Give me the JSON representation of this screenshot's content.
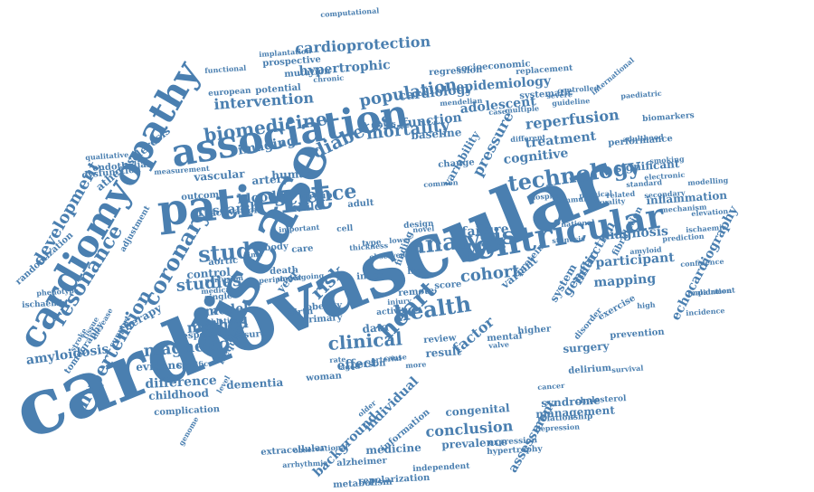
{
  "palette": {
    "word_color": "#4a7fb0",
    "background": "#ffffff"
  },
  "words": [
    "cardiovascular",
    "disease",
    "cardiomyopathy",
    "association",
    "patient",
    "ventricular",
    "coronary",
    "resonance",
    "analysis",
    "study",
    "heart",
    "health",
    "hypertension",
    "technology",
    "clinical",
    "science",
    "biomedicine",
    "mortality",
    "development",
    "magnetic",
    "cohort",
    "risk",
    "diabetes",
    "population",
    "studies",
    "method",
    "imaging",
    "function",
    "intervention",
    "cardioprotection",
    "hypertrophic",
    "epidemiology",
    "cardiology",
    "reperfusion",
    "adolescent",
    "treatment",
    "cognitive",
    "echocardiography",
    "infarction",
    "genetic",
    "factor",
    "pressure",
    "conclusion",
    "individual",
    "background",
    "assessment",
    "medicine",
    "management",
    "syndrome",
    "difference",
    "evidence",
    "childhood",
    "dementia",
    "research",
    "model",
    "vascular",
    "atherosclerosis",
    "amyloidosis",
    "therapy",
    "diagnosis",
    "participant",
    "mapping",
    "significant",
    "inflammation",
    "surgery",
    "delirium",
    "fibrillation",
    "exercise",
    "congenital",
    "prevalence",
    "extracellular",
    "failure",
    "outcome",
    "blood",
    "control",
    "aortic",
    "death",
    "human",
    "year",
    "data",
    "review",
    "result",
    "mental",
    "effect",
    "person",
    "woman",
    "artery",
    "adult",
    "child",
    "group",
    "life",
    "score",
    "protein",
    "system",
    "variant",
    "higher",
    "complication",
    "specific",
    "response",
    "measure",
    "repolarization",
    "independent",
    "expression",
    "hypertrophy",
    "depression",
    "relationship",
    "cholesterol",
    "systematic",
    "tomography",
    "dysfunction",
    "endothelial",
    "ischaemia",
    "randomization",
    "european",
    "potential",
    "prospective",
    "mutation",
    "socioeconomic",
    "regression",
    "replacement",
    "computational",
    "implantation",
    "functional",
    "chronic",
    "mendelian",
    "paediatric",
    "international",
    "biomarkers",
    "performance",
    "secondary",
    "mechanism",
    "prediction",
    "impairment",
    "validation",
    "elevation",
    "modelling",
    "amyloid",
    "ischaemic",
    "prevention",
    "information",
    "metabolism",
    "alzheimer",
    "observational",
    "arrhythmia",
    "genome",
    "increase",
    "single",
    "medical",
    "ablation",
    "support",
    "adjustment",
    "measurement",
    "qualitative",
    "phenotype",
    "stroke",
    "tissue",
    "birth",
    "primary",
    "obesity",
    "baseline",
    "hospital",
    "physical",
    "community",
    "quality",
    "related",
    "national",
    "stenosis",
    "disorder",
    "survival",
    "cancer",
    "older",
    "time",
    "body",
    "care",
    "cell",
    "type",
    "index",
    "remote",
    "finding",
    "change",
    "common",
    "variability",
    "activation",
    "perfusion",
    "frequency",
    "confidence",
    "electronic",
    "standard",
    "smoking",
    "incidence",
    "high",
    "case",
    "status",
    "level",
    "rate",
    "aged",
    "novel",
    "lower",
    "observed",
    "activity",
    "design",
    "injury",
    "valve",
    "cause",
    "arterial",
    "more",
    "undergoing",
    "peripheral",
    "important",
    "thickness",
    "controlled",
    "guideline",
    "severe",
    "multiple",
    "different",
    "adulthood"
  ]
}
